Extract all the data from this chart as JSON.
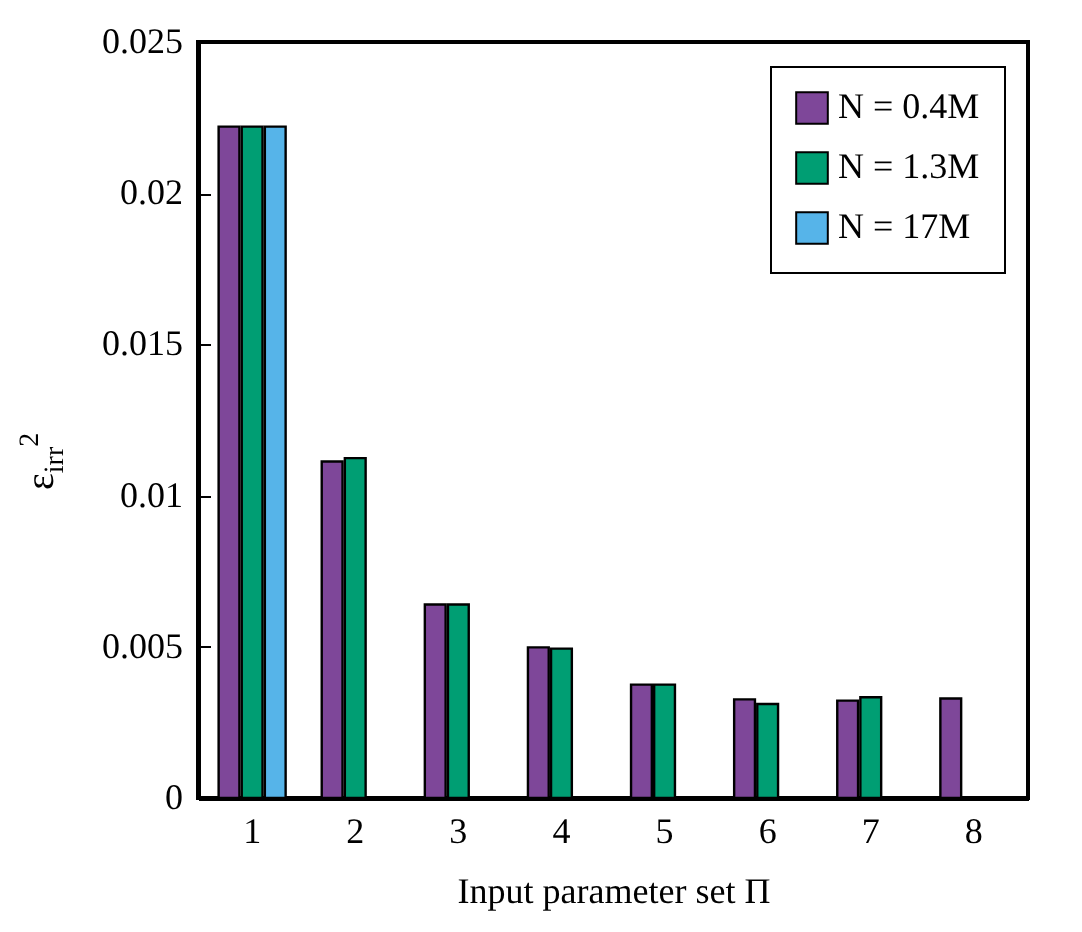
{
  "chart_data": {
    "type": "bar",
    "xlabel": "Input parameter set Π",
    "ylabel": "ε$_{irr}$$^{2}$",
    "categories": [
      "1",
      "2",
      "3",
      "4",
      "5",
      "6",
      "7",
      "8"
    ],
    "series": [
      {
        "name": "N = 0.4M",
        "color": "#7e4799",
        "values": [
          0.0222,
          0.01113,
          0.0064,
          0.00498,
          0.00375,
          0.00326,
          0.00322,
          0.00329
        ]
      },
      {
        "name": "N = 1.3M",
        "color": "#009e73",
        "values": [
          0.0222,
          0.01124,
          0.0064,
          0.00494,
          0.00375,
          0.00311,
          0.00333,
          null
        ]
      },
      {
        "name": "N = 17M",
        "color": "#56b4e9",
        "values": [
          0.0222,
          null,
          null,
          null,
          null,
          null,
          null,
          null
        ]
      }
    ],
    "ylim": [
      0,
      0.025
    ],
    "yticks": [
      0,
      0.005,
      0.01,
      0.015,
      0.02,
      0.025
    ],
    "legend": "top right",
    "grid": false
  }
}
